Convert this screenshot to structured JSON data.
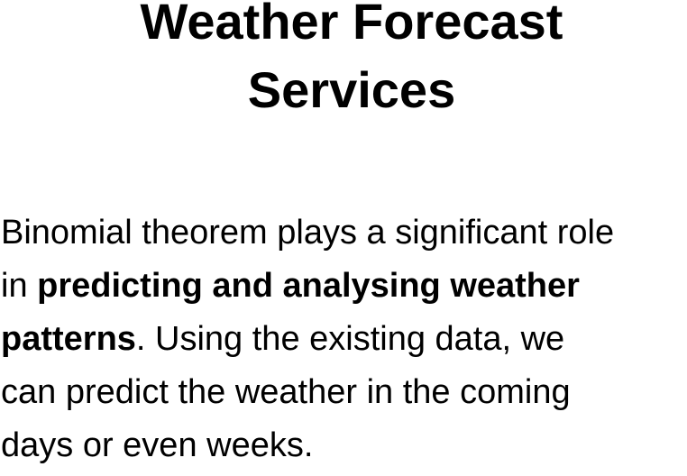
{
  "title": {
    "line1": "Weather Forecast",
    "line2": "Services"
  },
  "paragraph": {
    "line1": "Binomial theorem plays a significant role",
    "line2_prefix": "in ",
    "emphasis_part1": "predicting and analysing weather",
    "emphasis_part2": "patterns",
    "line3_suffix": ". Using the existing data, we",
    "line4": "can predict the weather in the coming",
    "line5": "days or even weeks."
  }
}
